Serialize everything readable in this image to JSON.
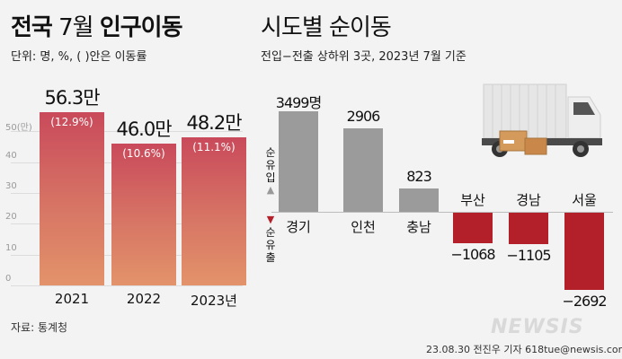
{
  "left": {
    "title_normal": "전국 7월 ",
    "title_bold_a": "전국",
    "title_mid": " 7월 ",
    "title_bold_b": "인구이동",
    "unit": "단위: 명, %, ( )안은 이동률",
    "source": "자료: 통계청"
  },
  "right": {
    "title": "시도별 순이동",
    "subtitle": "전입−전출 상하위 3곳, 2023년 7월 기준",
    "legend_up": "순유입",
    "legend_down": "순유출",
    "up_arrow": "▲",
    "down_arrow": "▼"
  },
  "footer": {
    "credit": "23.08.30 전진우 기자 618tue@newsis.com",
    "watermark": "NEWSIS"
  },
  "chart_data": [
    {
      "type": "bar",
      "categories": [
        "2021",
        "2022",
        "2023년"
      ],
      "values": [
        56.3,
        46.0,
        48.2
      ],
      "value_labels": [
        "56.3만",
        "46.0만",
        "48.2만"
      ],
      "rate_labels": [
        "(12.9%)",
        "(10.6%)",
        "(11.1%)"
      ],
      "yticks": [
        "50(만)",
        "40",
        "30",
        "20",
        "10",
        "0"
      ],
      "ylim": [
        0,
        60
      ],
      "grid": true,
      "colors": [
        "#c94a5b",
        "#e3936a"
      ]
    },
    {
      "type": "bar",
      "categories": [
        "경기",
        "인천",
        "충남",
        "부산",
        "경남",
        "서울"
      ],
      "values": [
        3499,
        2906,
        823,
        -1068,
        -1105,
        -2692
      ],
      "value_labels": [
        "3499명",
        "2906",
        "823",
        "−1068",
        "−1105",
        "−2692"
      ],
      "colors": {
        "positive": "#9b9b9b",
        "negative": "#b3202a"
      }
    }
  ]
}
